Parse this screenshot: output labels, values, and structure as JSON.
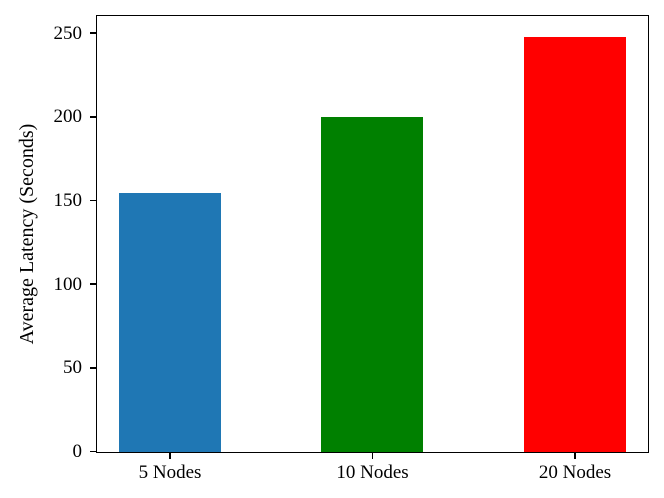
{
  "figure": {
    "background": "#ffffff",
    "axis_color": "#000000"
  },
  "chart_data": {
    "type": "bar",
    "title": "",
    "categories": [
      "5 Nodes",
      "10 Nodes",
      "20 Nodes"
    ],
    "values": [
      155,
      200,
      248
    ],
    "bar_colors": [
      "#1f77b4",
      "#008000",
      "#ff0000"
    ],
    "xlabel": "",
    "ylabel": "Average Latency (Seconds)",
    "ylim": [
      0,
      260
    ],
    "yticks": [
      0,
      50,
      100,
      150,
      200,
      250
    ],
    "grid": false,
    "legend": "none"
  }
}
